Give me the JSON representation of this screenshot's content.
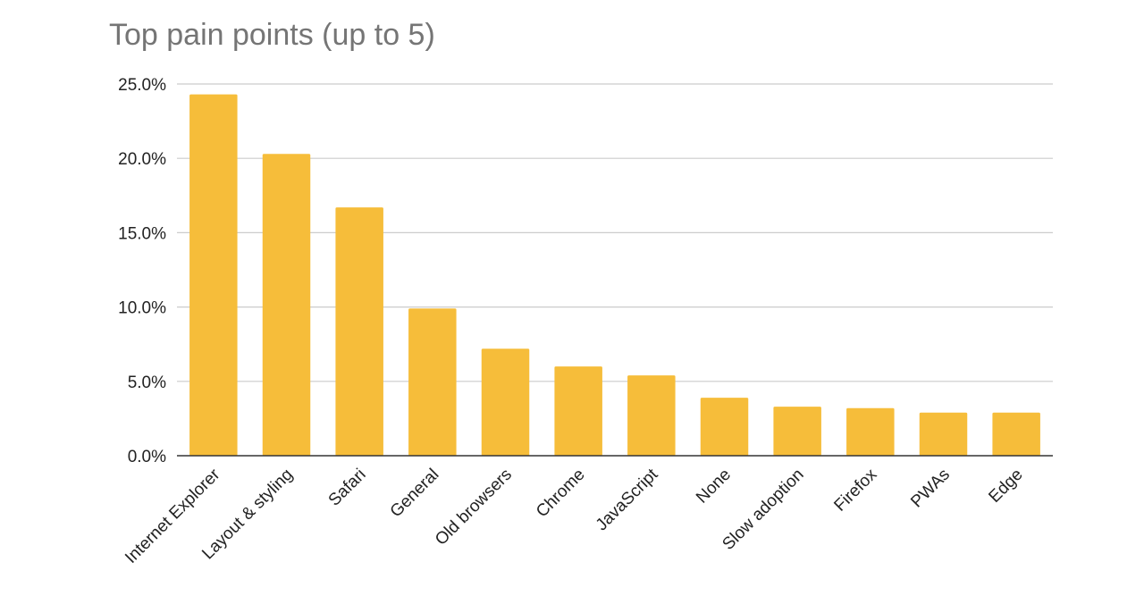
{
  "chart_data": {
    "type": "bar",
    "title": "Top pain points (up to 5)",
    "categories": [
      "Internet Explorer",
      "Layout & styling",
      "Safari",
      "General",
      "Old browsers",
      "Chrome",
      "JavaScript",
      "None",
      "Slow adoption",
      "Firefox",
      "PWAs",
      "Edge"
    ],
    "values": [
      24.3,
      20.3,
      16.7,
      9.9,
      7.2,
      6.0,
      5.4,
      3.9,
      3.3,
      3.2,
      2.9,
      2.9
    ],
    "ylim": [
      0,
      25
    ],
    "yticks": [
      "0.0%",
      "5.0%",
      "10.0%",
      "15.0%",
      "20.0%",
      "25.0%"
    ],
    "ytick_values": [
      0,
      5,
      10,
      15,
      20,
      25
    ],
    "grid": true,
    "bar_color": "#F6BD3A",
    "grid_color": "#CCCCCC",
    "axis_color": "#333333"
  }
}
